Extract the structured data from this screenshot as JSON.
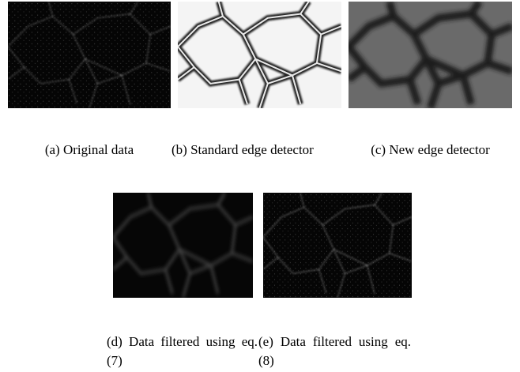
{
  "figure": {
    "subfigures": [
      {
        "caption": "(a) Original data"
      },
      {
        "caption": "(b) Standard edge detec­tor"
      },
      {
        "caption": "(c) New edge detector"
      },
      {
        "caption": "(d) Data filtered using eq.(7)"
      },
      {
        "caption": "(e) Data filtered using eq.(8)"
      }
    ]
  }
}
